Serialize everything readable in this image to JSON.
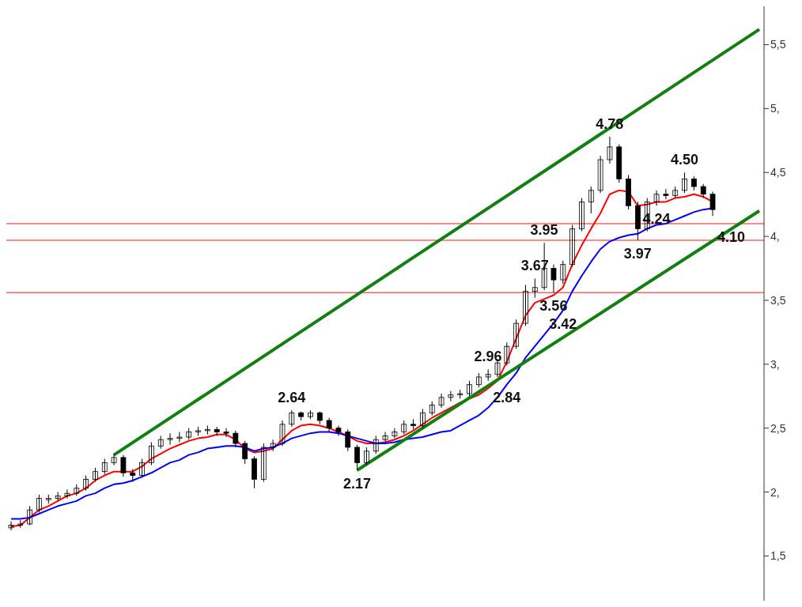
{
  "chart_data": {
    "type": "candlestick",
    "categories": [
      null,
      null,
      null,
      null,
      null,
      null,
      null,
      null,
      null,
      null,
      null,
      null,
      null,
      null,
      null,
      null,
      null,
      null,
      null,
      null,
      null,
      null,
      null,
      null,
      null,
      null,
      null,
      null,
      null,
      null,
      null,
      null,
      null,
      null,
      null,
      null,
      null,
      null,
      null,
      null,
      null,
      null,
      null,
      null,
      null,
      null,
      null,
      null,
      null,
      null,
      null,
      null,
      null,
      null,
      null,
      null,
      null,
      null,
      null,
      null,
      null,
      null,
      null,
      null,
      null,
      null,
      null,
      null,
      null,
      null,
      null,
      null,
      null,
      null,
      null,
      null,
      null,
      null,
      null,
      null,
      null
    ],
    "color": "#000000",
    "ohlc": [
      [
        1.72,
        1.77,
        1.7,
        1.74
      ],
      [
        1.74,
        1.78,
        1.72,
        1.75
      ],
      [
        1.75,
        1.89,
        1.74,
        1.86
      ],
      [
        1.86,
        1.98,
        1.84,
        1.95
      ],
      [
        1.94,
        1.98,
        1.91,
        1.95
      ],
      [
        1.95,
        2.0,
        1.93,
        1.97
      ],
      [
        1.97,
        2.02,
        1.95,
        1.99
      ],
      [
        1.99,
        2.06,
        1.97,
        2.03
      ],
      [
        2.03,
        2.13,
        2.01,
        2.1
      ],
      [
        2.1,
        2.19,
        2.08,
        2.16
      ],
      [
        2.16,
        2.26,
        2.14,
        2.23
      ],
      [
        2.23,
        2.3,
        2.21,
        2.27
      ],
      [
        2.27,
        2.29,
        2.12,
        2.15
      ],
      [
        2.15,
        2.18,
        2.08,
        2.13
      ],
      [
        2.13,
        2.26,
        2.11,
        2.23
      ],
      [
        2.23,
        2.39,
        2.21,
        2.36
      ],
      [
        2.36,
        2.44,
        2.34,
        2.41
      ],
      [
        2.41,
        2.46,
        2.37,
        2.42
      ],
      [
        2.42,
        2.47,
        2.39,
        2.43
      ],
      [
        2.43,
        2.5,
        2.41,
        2.47
      ],
      [
        2.47,
        2.51,
        2.44,
        2.48
      ],
      [
        2.48,
        2.52,
        2.45,
        2.49
      ],
      [
        2.49,
        2.51,
        2.44,
        2.47
      ],
      [
        2.47,
        2.5,
        2.43,
        2.46
      ],
      [
        2.46,
        2.48,
        2.35,
        2.38
      ],
      [
        2.38,
        2.4,
        2.22,
        2.26
      ],
      [
        2.26,
        2.28,
        2.03,
        2.1
      ],
      [
        2.1,
        2.38,
        2.08,
        2.35
      ],
      [
        2.35,
        2.41,
        2.32,
        2.38
      ],
      [
        2.38,
        2.56,
        2.36,
        2.53
      ],
      [
        2.53,
        2.64,
        2.51,
        2.62
      ],
      [
        2.62,
        2.63,
        2.56,
        2.59
      ],
      [
        2.59,
        2.64,
        2.57,
        2.62
      ],
      [
        2.62,
        2.63,
        2.53,
        2.56
      ],
      [
        2.56,
        2.58,
        2.47,
        2.5
      ],
      [
        2.5,
        2.52,
        2.44,
        2.47
      ],
      [
        2.47,
        2.49,
        2.32,
        2.35
      ],
      [
        2.35,
        2.37,
        2.17,
        2.23
      ],
      [
        2.23,
        2.35,
        2.21,
        2.32
      ],
      [
        2.32,
        2.44,
        2.3,
        2.41
      ],
      [
        2.41,
        2.47,
        2.39,
        2.44
      ],
      [
        2.44,
        2.5,
        2.42,
        2.47
      ],
      [
        2.47,
        2.56,
        2.45,
        2.53
      ],
      [
        2.53,
        2.57,
        2.49,
        2.52
      ],
      [
        2.52,
        2.65,
        2.5,
        2.62
      ],
      [
        2.62,
        2.71,
        2.6,
        2.68
      ],
      [
        2.68,
        2.77,
        2.66,
        2.74
      ],
      [
        2.74,
        2.79,
        2.71,
        2.76
      ],
      [
        2.76,
        2.8,
        2.73,
        2.77
      ],
      [
        2.77,
        2.87,
        2.75,
        2.84
      ],
      [
        2.84,
        2.93,
        2.82,
        2.9
      ],
      [
        2.9,
        2.96,
        2.87,
        2.92
      ],
      [
        2.92,
        3.04,
        2.9,
        3.01
      ],
      [
        3.01,
        3.17,
        2.99,
        3.14
      ],
      [
        3.14,
        3.35,
        3.12,
        3.32
      ],
      [
        3.32,
        3.62,
        3.3,
        3.57
      ],
      [
        3.57,
        3.67,
        3.52,
        3.6
      ],
      [
        3.6,
        3.95,
        3.58,
        3.75
      ],
      [
        3.75,
        3.78,
        3.56,
        3.66
      ],
      [
        3.66,
        3.81,
        3.63,
        3.78
      ],
      [
        3.78,
        4.09,
        3.76,
        4.06
      ],
      [
        4.06,
        4.3,
        4.04,
        4.27
      ],
      [
        4.27,
        4.39,
        4.18,
        4.36
      ],
      [
        4.36,
        4.63,
        4.34,
        4.6
      ],
      [
        4.6,
        4.78,
        4.57,
        4.7
      ],
      [
        4.7,
        4.72,
        4.42,
        4.45
      ],
      [
        4.45,
        4.48,
        4.21,
        4.24
      ],
      [
        4.24,
        4.27,
        3.97,
        4.06
      ],
      [
        4.06,
        4.3,
        4.04,
        4.27
      ],
      [
        4.27,
        4.36,
        4.24,
        4.33
      ],
      [
        4.33,
        4.37,
        4.29,
        4.32
      ],
      [
        4.32,
        4.39,
        4.3,
        4.36
      ],
      [
        4.36,
        4.5,
        4.34,
        4.45
      ],
      [
        4.45,
        4.47,
        4.36,
        4.39
      ],
      [
        4.39,
        4.41,
        4.3,
        4.33
      ],
      [
        4.33,
        4.35,
        4.16,
        4.21
      ],
      null,
      null,
      null,
      null,
      null
    ],
    "series": [
      {
        "type": "line",
        "color": "#ff0000",
        "values": [
          1.73,
          1.74,
          1.8,
          1.86,
          1.89,
          1.93,
          1.97,
          1.99,
          2.03,
          2.09,
          2.13,
          2.16,
          2.16,
          2.16,
          2.2,
          2.26,
          2.3,
          2.34,
          2.37,
          2.4,
          2.42,
          2.43,
          2.45,
          2.45,
          2.41,
          2.34,
          2.31,
          2.32,
          2.34,
          2.41,
          2.48,
          2.52,
          2.53,
          2.52,
          2.5,
          2.47,
          2.44,
          2.4,
          2.38,
          2.38,
          2.39,
          2.41,
          2.44,
          2.48,
          2.53,
          2.58,
          2.62,
          2.66,
          2.7,
          2.73,
          2.76,
          2.81,
          2.87,
          3.02,
          3.2,
          3.38,
          3.48,
          3.51,
          3.54,
          3.6,
          3.78,
          3.93,
          4.06,
          4.18,
          4.33,
          4.36,
          4.35,
          4.24,
          4.25,
          4.27,
          4.27,
          4.3,
          4.31,
          4.33,
          4.31,
          4.27,
          null,
          null,
          null,
          null,
          null
        ]
      },
      {
        "type": "line",
        "color": "#0000ff",
        "values": [
          1.79,
          1.79,
          1.8,
          1.83,
          1.86,
          1.89,
          1.91,
          1.93,
          1.97,
          1.99,
          2.03,
          2.06,
          2.07,
          2.09,
          2.12,
          2.15,
          2.19,
          2.23,
          2.25,
          2.29,
          2.31,
          2.34,
          2.35,
          2.36,
          2.36,
          2.35,
          2.32,
          2.34,
          2.35,
          2.38,
          2.42,
          2.44,
          2.46,
          2.47,
          2.47,
          2.46,
          2.44,
          2.42,
          2.4,
          2.38,
          2.38,
          2.39,
          2.41,
          2.42,
          2.43,
          2.45,
          2.47,
          2.48,
          2.52,
          2.56,
          2.6,
          2.66,
          2.74,
          2.84,
          2.93,
          3.05,
          3.14,
          3.23,
          3.32,
          3.42,
          3.57,
          3.69,
          3.8,
          3.9,
          3.96,
          3.99,
          4.01,
          4.02,
          4.06,
          4.09,
          4.1,
          4.13,
          4.16,
          4.19,
          4.21,
          4.22,
          null,
          null,
          null,
          null,
          null
        ]
      },
      {
        "type": "line",
        "color": "#108010",
        "values": [
          null,
          null,
          null,
          null,
          null,
          null,
          null,
          null,
          null,
          null,
          null,
          2.29,
          null,
          null,
          null,
          null,
          null,
          null,
          null,
          null,
          null,
          null,
          null,
          null,
          null,
          null,
          null,
          null,
          null,
          null,
          null,
          null,
          null,
          null,
          null,
          null,
          null,
          null,
          null,
          null,
          null,
          null,
          null,
          null,
          null,
          null,
          null,
          null,
          null,
          null,
          null,
          null,
          null,
          null,
          null,
          null,
          null,
          null,
          null,
          null,
          null,
          null,
          null,
          null,
          null,
          null,
          null,
          null,
          null,
          null,
          null,
          null,
          null,
          null,
          null,
          null,
          null,
          null,
          null,
          null,
          5.62
        ]
      },
      {
        "type": "line",
        "color": "#108010",
        "values": [
          null,
          null,
          null,
          null,
          null,
          null,
          null,
          null,
          null,
          null,
          null,
          null,
          null,
          null,
          null,
          null,
          null,
          null,
          null,
          null,
          null,
          null,
          null,
          null,
          null,
          null,
          null,
          null,
          null,
          null,
          null,
          null,
          null,
          null,
          null,
          null,
          null,
          2.17,
          null,
          null,
          null,
          null,
          null,
          null,
          null,
          null,
          null,
          null,
          null,
          null,
          null,
          null,
          null,
          null,
          null,
          null,
          null,
          null,
          null,
          null,
          null,
          null,
          null,
          null,
          null,
          null,
          null,
          null,
          null,
          null,
          null,
          null,
          null,
          null,
          null,
          null,
          null,
          null,
          null,
          null,
          4.2
        ]
      }
    ],
    "ref_lines": [
      {
        "axis": "y",
        "value": 3.56,
        "color": "#ff6060"
      },
      {
        "axis": "y",
        "value": 3.97,
        "color": "#ff6060"
      },
      {
        "axis": "y",
        "value": 4.1,
        "color": "#ff6060"
      }
    ],
    "annotations": [
      {
        "text": "2.64",
        "y": 2.64
      },
      {
        "text": "2.17",
        "y": 2.17
      },
      {
        "text": "2.96",
        "y": 2.96
      },
      {
        "text": "2.84",
        "y": 2.84
      },
      {
        "text": "3.67",
        "y": 3.67
      },
      {
        "text": "3.95",
        "y": 3.95
      },
      {
        "text": "3.56",
        "y": 3.56
      },
      {
        "text": "3.42",
        "y": 3.42
      },
      {
        "text": "4.78",
        "y": 4.78
      },
      {
        "text": "3.97",
        "y": 3.97
      },
      {
        "text": "4.50",
        "y": 4.5
      },
      {
        "text": "4.24",
        "y": 4.24
      },
      {
        "text": "4.10",
        "y": 4.1
      }
    ],
    "ylim": [
      1.15,
      5.8
    ],
    "yticks": [
      {
        "value": 1.5,
        "label": "1,5"
      },
      {
        "value": 2,
        "label": "2,"
      },
      {
        "value": 2.5,
        "label": "2,5"
      },
      {
        "value": 3,
        "label": "3,"
      },
      {
        "value": 3.5,
        "label": "3,5"
      },
      {
        "value": 4,
        "label": "4,"
      },
      {
        "value": 4.5,
        "label": "4,5"
      },
      {
        "value": 5,
        "label": "5,"
      },
      {
        "value": 5.5,
        "label": "5,5"
      }
    ],
    "tick_labels": "y"
  }
}
